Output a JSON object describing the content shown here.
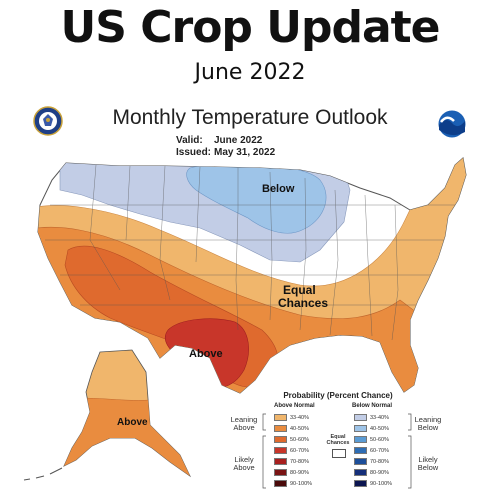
{
  "header": {
    "title": "US Crop Update",
    "subtitle": "June 2022"
  },
  "map": {
    "title": "Monthly Temperature Outlook",
    "valid_label": "Valid:",
    "valid_value": "June 2022",
    "issued_label": "Issued:",
    "issued_value": "May 31, 2022",
    "labels": {
      "below": "Below",
      "equal_1": "Equal",
      "equal_2": "Chances",
      "above": "Above",
      "alaska_above": "Above"
    },
    "logos": {
      "left": "noaa-dept-commerce-seal-icon",
      "right": "noaa-logo-icon"
    },
    "colors": {
      "land": "#ffffff",
      "above_33_40": "#f0b66c",
      "above_40_50": "#e98c3f",
      "above_50_60": "#df6a2e",
      "above_60_70": "#c8362a",
      "below_33_40": "#c2cde6",
      "below_40_50": "#9ec4e8"
    }
  },
  "legend": {
    "title": "Probability (Percent Chance)",
    "above_header": "Above Normal",
    "below_header": "Below Normal",
    "leaning_above": [
      "Leaning",
      "Above"
    ],
    "likely_above": [
      "Likely",
      "Above"
    ],
    "leaning_below": [
      "Leaning",
      "Below"
    ],
    "likely_below": [
      "Likely",
      "Below"
    ],
    "equal_chances": [
      "Equal",
      "Chances"
    ],
    "above": [
      {
        "label": "33-40%",
        "color": "#f0b66c"
      },
      {
        "label": "40-50%",
        "color": "#e98c3f"
      },
      {
        "label": "50-60%",
        "color": "#df6a2e"
      },
      {
        "label": "60-70%",
        "color": "#c8362a"
      },
      {
        "label": "70-80%",
        "color": "#a8201f"
      },
      {
        "label": "80-90%",
        "color": "#7a1414"
      },
      {
        "label": "90-100%",
        "color": "#4a0a0a"
      }
    ],
    "below": [
      {
        "label": "33-40%",
        "color": "#c2cde6"
      },
      {
        "label": "40-50%",
        "color": "#9ec4e8"
      },
      {
        "label": "50-60%",
        "color": "#5a9bd4"
      },
      {
        "label": "60-70%",
        "color": "#2e6db4"
      },
      {
        "label": "70-80%",
        "color": "#1d4f9a"
      },
      {
        "label": "80-90%",
        "color": "#152f7a"
      },
      {
        "label": "90-100%",
        "color": "#0b1550"
      }
    ]
  }
}
